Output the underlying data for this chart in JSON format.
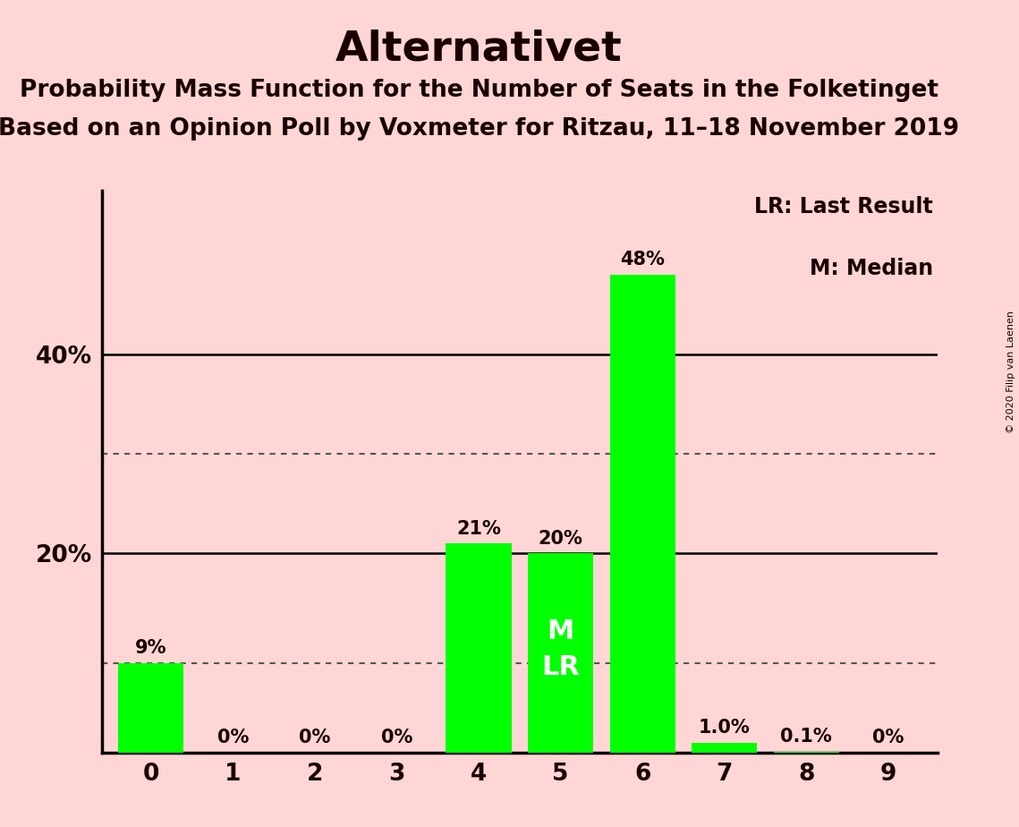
{
  "title": "Alternativet",
  "subtitle": "Probability Mass Function for the Number of Seats in the Folketinget",
  "subsubtitle": "Based on an Opinion Poll by Voxmeter for Ritzau, 11–18 November 2019",
  "copyright": "© 2020 Filip van Laenen",
  "categories": [
    0,
    1,
    2,
    3,
    4,
    5,
    6,
    7,
    8,
    9
  ],
  "values": [
    0.09,
    0.0,
    0.0,
    0.0,
    0.21,
    0.2,
    0.48,
    0.01,
    0.001,
    0.0
  ],
  "bar_labels": [
    "9%",
    "0%",
    "0%",
    "0%",
    "21%",
    "20%",
    "48%",
    "1.0%",
    "0.1%",
    "0%"
  ],
  "bar_color": "#00FF00",
  "background_color": "#FFD6D6",
  "median_seat": 5,
  "dotted_lines": [
    0.09,
    0.3
  ],
  "solid_lines": [
    0.2,
    0.4
  ],
  "yticks": [
    0.2,
    0.4
  ],
  "ytick_labels": [
    "20%",
    "40%"
  ],
  "ylim": [
    0,
    0.565
  ],
  "legend_lr": "LR: Last Result",
  "legend_m": "M: Median",
  "title_fontsize": 34,
  "subtitle_fontsize": 19,
  "subsubtitle_fontsize": 19,
  "bar_label_fontsize": 15,
  "tick_fontsize": 19,
  "legend_fontsize": 17
}
